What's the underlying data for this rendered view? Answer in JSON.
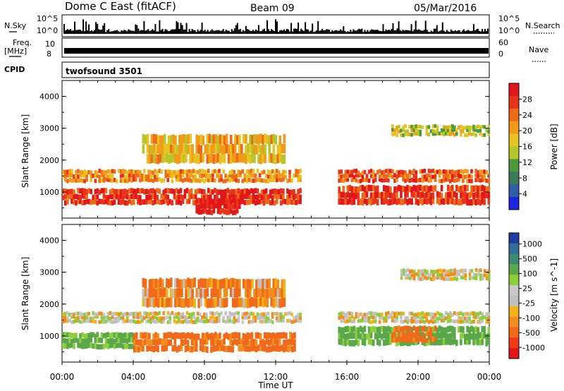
{
  "header": {
    "station": "Dome C East (fitACF)",
    "beam": "Beam 09",
    "date": "05/Mar/2016"
  },
  "strips": {
    "nsky_label": "N.Sky",
    "nsearch_label": "N.Search",
    "freq_label_1": "Freq.",
    "freq_label_2": "[MHz]",
    "nave_label": "Nave",
    "cpid_label": "CPID",
    "cpid_value": "twofsound 3501",
    "left_ticks": {
      "nsky_top": "10^5",
      "nsky_bottom": "10^0",
      "freq_top": "10",
      "freq_bottom": "8"
    },
    "right_ticks": {
      "nsearch_top": "10^5",
      "nsearch_bottom": "10^0",
      "nave_top": "60",
      "nave_bottom": "0"
    }
  },
  "panels": {
    "power": {
      "ylabel": "Slant Range [km]",
      "yticks": [
        "1000",
        "2000",
        "3000",
        "4000"
      ],
      "colorbar_label": "Power [dB]",
      "colorbar_ticks": [
        "4",
        "8",
        "12",
        "16",
        "20",
        "24",
        "28"
      ],
      "colors": [
        "#1e26e0",
        "#2f5fa8",
        "#3b7a5a",
        "#4a9a3c",
        "#b6c52a",
        "#e8c21f",
        "#f29a1a",
        "#ee6a16",
        "#e8351a",
        "#e3161a"
      ]
    },
    "velocity": {
      "ylabel": "Slant Range [km]",
      "yticks": [
        "1000",
        "2000",
        "3000",
        "4000"
      ],
      "colorbar_label": "Velocity [m s^-1]",
      "colorbar_ticks": [
        "1000",
        "500",
        "100",
        "25",
        "-25",
        "-100",
        "-500",
        "-1000"
      ],
      "colors": [
        "#1f3f9f",
        "#2f6f9a",
        "#3b8a72",
        "#5aa84a",
        "#8ccf3a",
        "#c8c8c8",
        "#c0c0c0",
        "#f2b21a",
        "#f28c1a",
        "#f06a1a",
        "#ee3a1a",
        "#e3161a"
      ]
    }
  },
  "xaxis": {
    "label": "Time UT",
    "ticks": [
      "00:00",
      "04:00",
      "08:00",
      "12:00",
      "16:00",
      "20:00",
      "00:00"
    ]
  },
  "chart_data": {
    "type": "heatmap",
    "title": "Dome C East (fitACF)",
    "subtitle": "Beam 09 05/Mar/2016",
    "xlabel": "Time UT",
    "ylabel": "Slant Range [km]",
    "xlim": [
      "00:00",
      "24:00"
    ],
    "ylim": [
      180,
      4500
    ],
    "panels": [
      {
        "name": "Power",
        "unit": "dB",
        "colorbar_range": [
          0,
          30
        ],
        "bands": [
          {
            "t_start": 0,
            "t_end": 13.4,
            "range_low": 1300,
            "range_high": 1700,
            "value": 20
          },
          {
            "t_start": 0,
            "t_end": 13.4,
            "range_low": 600,
            "range_high": 1100,
            "value": 26
          },
          {
            "t_start": 7.5,
            "t_end": 10,
            "range_low": 300,
            "range_high": 800,
            "value": 29
          },
          {
            "t_start": 4.5,
            "t_end": 12.5,
            "range_low": 1900,
            "range_high": 2800,
            "value": 18
          },
          {
            "t_start": 15.5,
            "t_end": 24,
            "range_low": 1300,
            "range_high": 1700,
            "value": 24
          },
          {
            "t_start": 15.5,
            "t_end": 24,
            "range_low": 600,
            "range_high": 1200,
            "value": 26
          },
          {
            "t_start": 18.5,
            "t_end": 24,
            "range_low": 2750,
            "range_high": 3100,
            "value": 14
          }
        ]
      },
      {
        "name": "Velocity",
        "unit": "m s^-1",
        "colorbar_range": [
          -1000,
          1000
        ],
        "bands": [
          {
            "t_start": 0,
            "t_end": 13.4,
            "range_low": 1400,
            "range_high": 1750,
            "value": 0
          },
          {
            "t_start": 0,
            "t_end": 4,
            "range_low": 600,
            "range_high": 1100,
            "value": 150
          },
          {
            "t_start": 4,
            "t_end": 13,
            "range_low": 500,
            "range_high": 1100,
            "value": -150
          },
          {
            "t_start": 4.5,
            "t_end": 12.5,
            "range_low": 1900,
            "range_high": 2800,
            "value": -100
          },
          {
            "t_start": 15.5,
            "t_end": 24,
            "range_low": 1400,
            "range_high": 1750,
            "value": 0
          },
          {
            "t_start": 15.5,
            "t_end": 24,
            "range_low": 700,
            "range_high": 1300,
            "value": 150
          },
          {
            "t_start": 18.5,
            "t_end": 21,
            "range_low": 800,
            "range_high": 1300,
            "value": -150
          },
          {
            "t_start": 19,
            "t_end": 24,
            "range_low": 2750,
            "range_high": 3100,
            "value": 0
          }
        ]
      }
    ]
  }
}
